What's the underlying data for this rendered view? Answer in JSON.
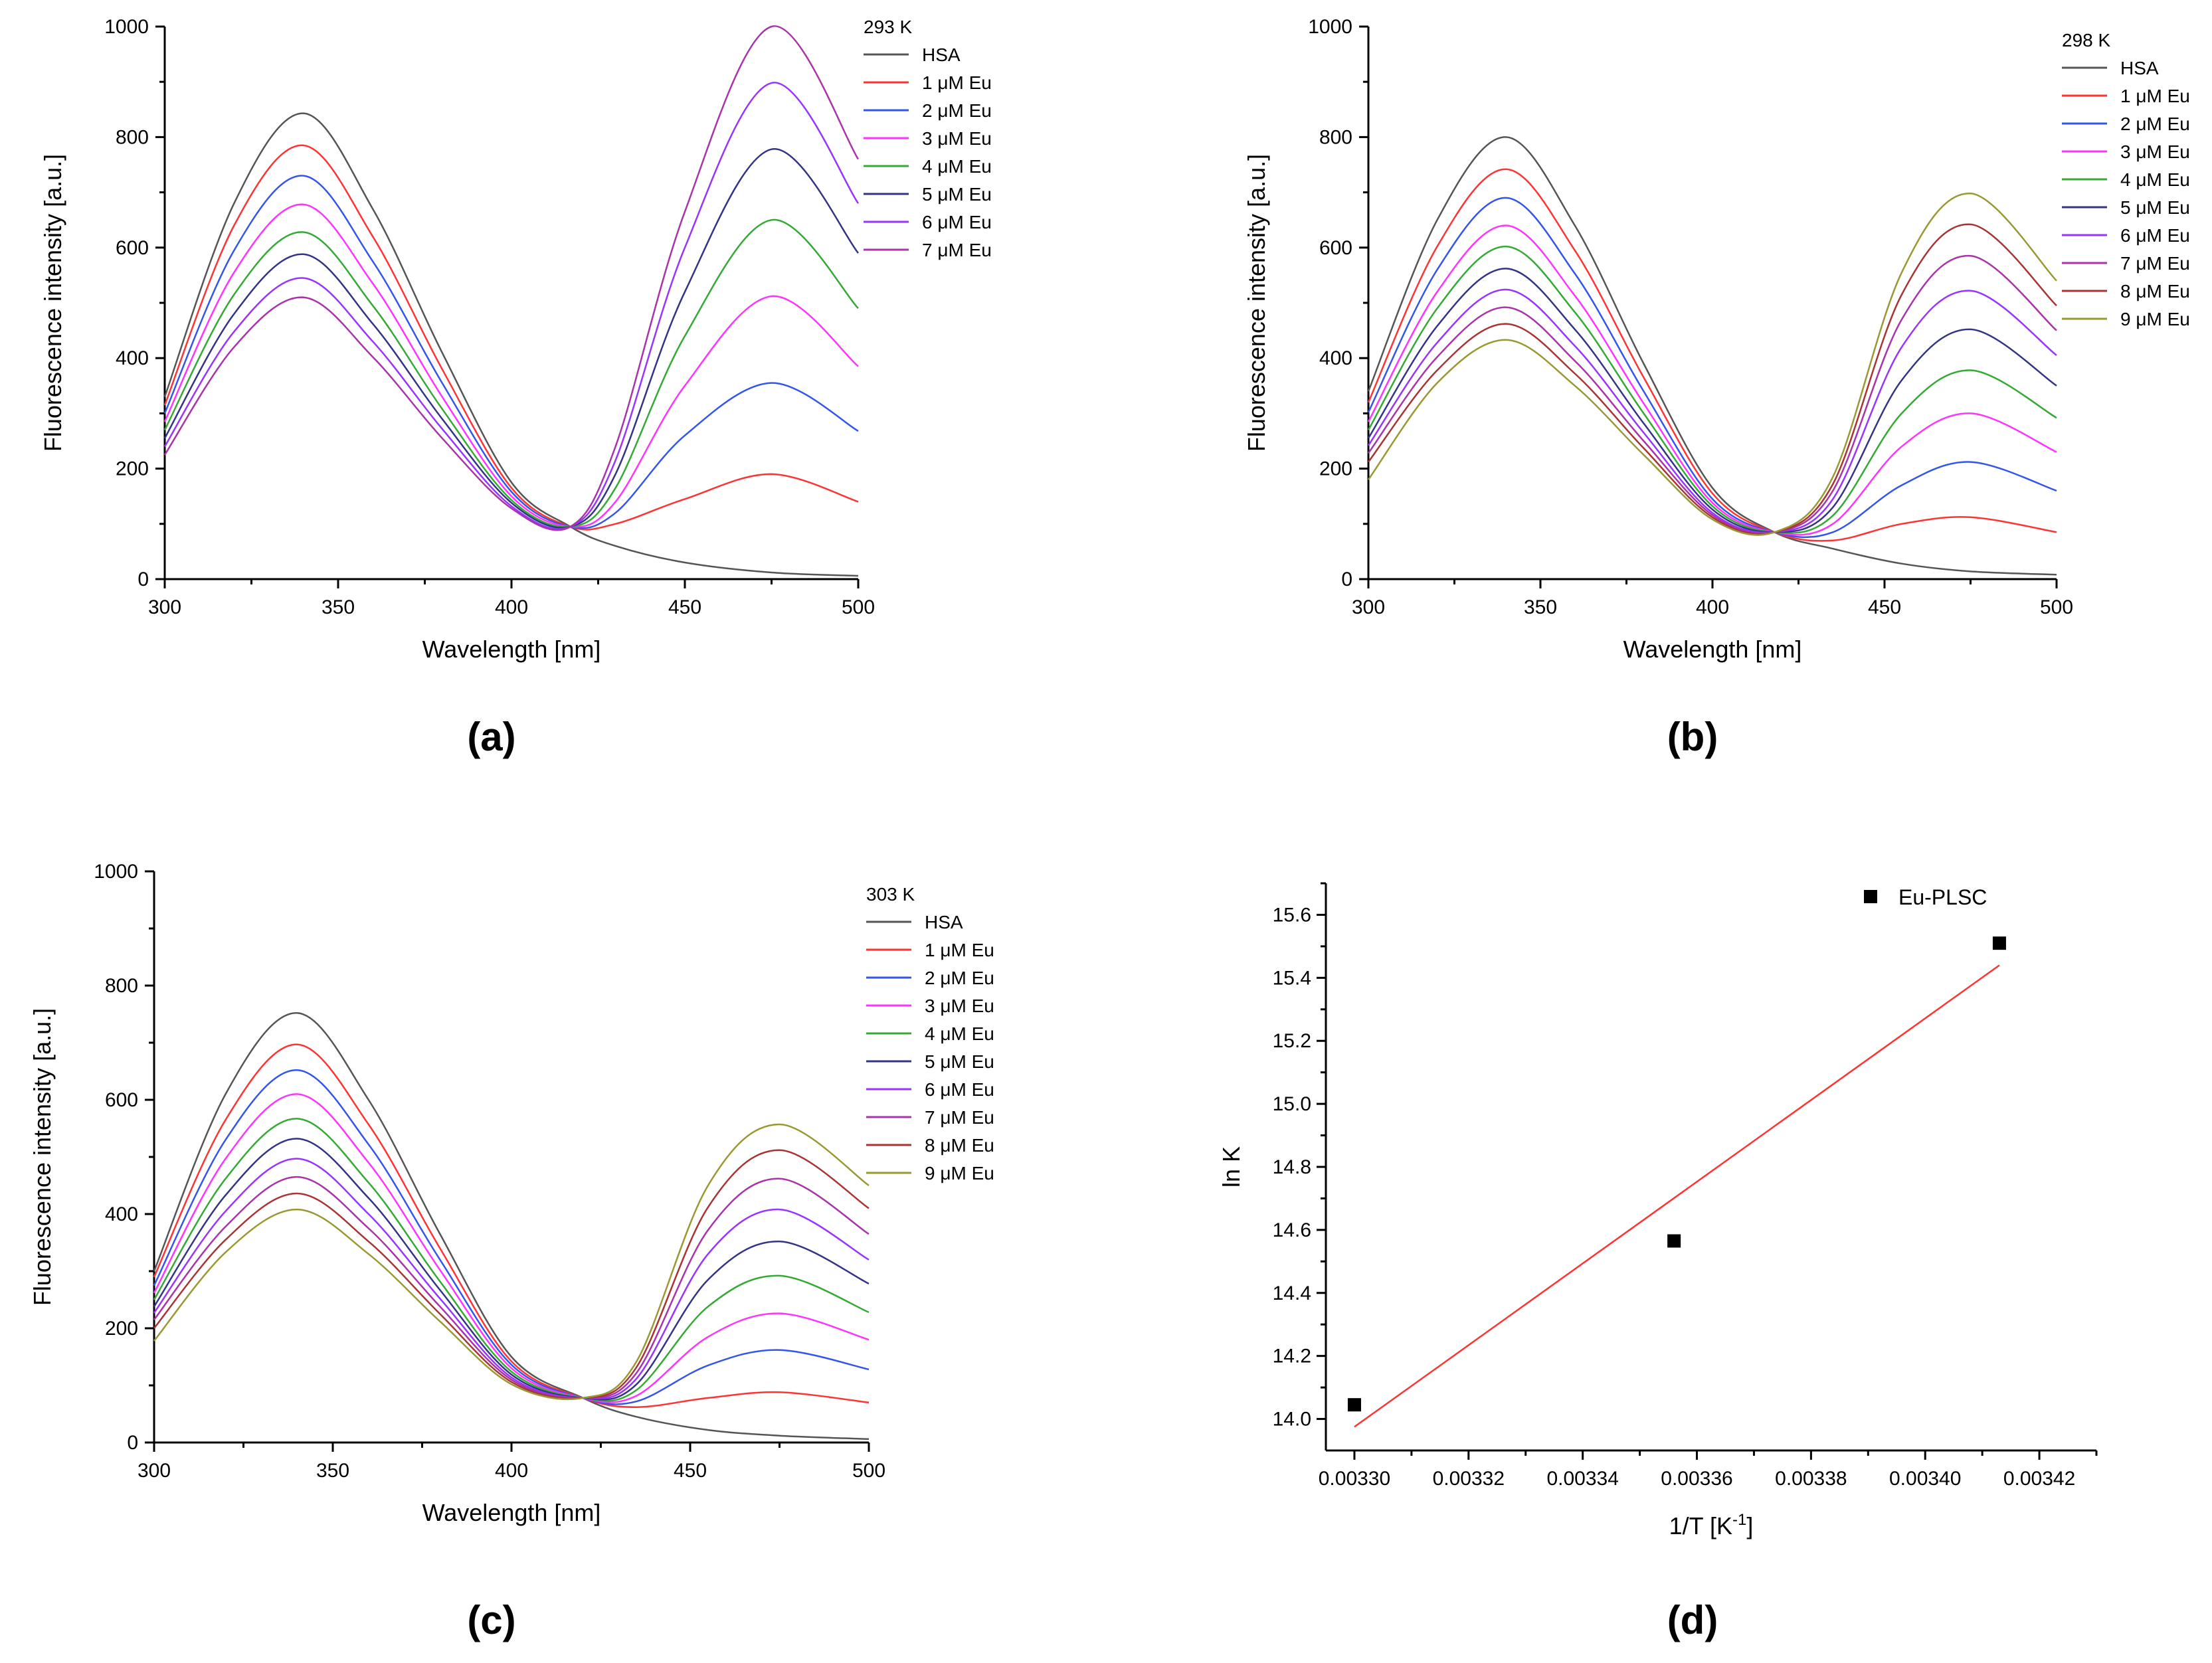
{
  "series_colors": [
    "#555555",
    "#ff3333",
    "#3355ee",
    "#ff33ff",
    "#33aa33",
    "#333388",
    "#9933ff",
    "#aa33aa",
    "#aa3333",
    "#999933"
  ],
  "chart_data": [
    {
      "type": "line",
      "panel_label": "(a)",
      "legend_title": "293 K",
      "xlabel": "Wavelength [nm]",
      "ylabel": "Fluorescence intensity [a.u.]",
      "xlim": [
        300,
        500
      ],
      "ylim": [
        0,
        1000
      ],
      "xticks": [
        "300",
        "350",
        "400",
        "450",
        "500"
      ],
      "yticks": [
        "0",
        "200",
        "400",
        "600",
        "800",
        "1000"
      ],
      "x": [
        300,
        320,
        340,
        360,
        380,
        400,
        417,
        430,
        450,
        475,
        500
      ],
      "series": [
        {
          "name": "HSA",
          "values": [
            330,
            680,
            843,
            670,
            410,
            175,
            95,
            60,
            30,
            12,
            6
          ]
        },
        {
          "name": "1 μM Eu",
          "values": [
            315,
            640,
            785,
            620,
            380,
            165,
            95,
            100,
            145,
            190,
            140
          ]
        },
        {
          "name": "2 μM Eu",
          "values": [
            300,
            595,
            730,
            575,
            355,
            158,
            95,
            120,
            260,
            355,
            268
          ]
        },
        {
          "name": "3 μM Eu",
          "values": [
            285,
            555,
            678,
            535,
            330,
            150,
            95,
            140,
            350,
            512,
            385
          ]
        },
        {
          "name": "4 μM Eu",
          "values": [
            270,
            515,
            628,
            495,
            308,
            143,
            95,
            165,
            440,
            650,
            490
          ]
        },
        {
          "name": "5 μM Eu",
          "values": [
            255,
            480,
            588,
            462,
            290,
            138,
            95,
            190,
            520,
            778,
            590
          ]
        },
        {
          "name": "6 μM Eu",
          "values": [
            240,
            448,
            545,
            430,
            272,
            132,
            95,
            215,
            600,
            898,
            680
          ]
        },
        {
          "name": "7 μM Eu",
          "values": [
            225,
            420,
            510,
            402,
            255,
            128,
            95,
            240,
            665,
            1000,
            760
          ]
        }
      ]
    },
    {
      "type": "line",
      "panel_label": "(b)",
      "legend_title": "298 K",
      "xlabel": "Wavelength [nm]",
      "ylabel": "Fluorescence intensity [a.u.]",
      "xlim": [
        300,
        500
      ],
      "ylim": [
        0,
        1000
      ],
      "xticks": [
        "300",
        "350",
        "400",
        "450",
        "500"
      ],
      "yticks": [
        "0",
        "200",
        "400",
        "600",
        "800",
        "1000"
      ],
      "x": [
        300,
        320,
        340,
        360,
        380,
        400,
        418,
        435,
        455,
        475,
        500
      ],
      "series": [
        {
          "name": "HSA",
          "values": [
            340,
            650,
            800,
            640,
            390,
            165,
            85,
            55,
            28,
            14,
            8
          ]
        },
        {
          "name": "1 μM Eu",
          "values": [
            320,
            602,
            742,
            595,
            365,
            155,
            85,
            70,
            100,
            112,
            85
          ]
        },
        {
          "name": "2 μM Eu",
          "values": [
            302,
            560,
            690,
            553,
            340,
            145,
            85,
            85,
            170,
            212,
            160
          ]
        },
        {
          "name": "3 μM Eu",
          "values": [
            285,
            520,
            640,
            513,
            318,
            138,
            85,
            100,
            240,
            300,
            230
          ]
        },
        {
          "name": "4 μM Eu",
          "values": [
            270,
            490,
            602,
            483,
            300,
            132,
            85,
            115,
            300,
            378,
            292
          ]
        },
        {
          "name": "5 μM Eu",
          "values": [
            255,
            458,
            562,
            452,
            282,
            126,
            85,
            130,
            360,
            452,
            350
          ]
        },
        {
          "name": "6 μM Eu",
          "values": [
            242,
            428,
            524,
            422,
            265,
            120,
            85,
            145,
            420,
            522,
            405
          ]
        },
        {
          "name": "7 μM Eu",
          "values": [
            228,
            402,
            492,
            395,
            250,
            116,
            85,
            160,
            470,
            585,
            450
          ]
        },
        {
          "name": "8 μM Eu",
          "values": [
            212,
            378,
            462,
            372,
            237,
            112,
            85,
            172,
            515,
            642,
            495
          ]
        },
        {
          "name": "9 μM Eu",
          "values": [
            180,
            355,
            433,
            350,
            225,
            108,
            85,
            185,
            555,
            698,
            540
          ]
        }
      ]
    },
    {
      "type": "line",
      "panel_label": "(c)",
      "legend_title": "303 K",
      "xlabel": "Wavelength [nm]",
      "ylabel": "Fluorescence intensity [a.u.]",
      "xlim": [
        300,
        500
      ],
      "ylim": [
        0,
        1000
      ],
      "xticks": [
        "300",
        "350",
        "400",
        "450",
        "500"
      ],
      "yticks": [
        "0",
        "200",
        "400",
        "600",
        "800",
        "1000"
      ],
      "x": [
        300,
        320,
        340,
        360,
        380,
        400,
        420,
        435,
        455,
        475,
        500
      ],
      "series": [
        {
          "name": "HSA",
          "values": [
            300,
            610,
            752,
            600,
            365,
            150,
            78,
            45,
            22,
            12,
            6
          ]
        },
        {
          "name": "1 μM Eu",
          "values": [
            290,
            565,
            697,
            557,
            340,
            142,
            78,
            62,
            78,
            88,
            70
          ]
        },
        {
          "name": "2 μM Eu",
          "values": [
            275,
            530,
            652,
            522,
            320,
            136,
            78,
            72,
            135,
            162,
            128
          ]
        },
        {
          "name": "3 μM Eu",
          "values": [
            262,
            497,
            610,
            490,
            302,
            130,
            78,
            82,
            185,
            226,
            180
          ]
        },
        {
          "name": "4 μM Eu",
          "values": [
            250,
            462,
            567,
            455,
            282,
            124,
            78,
            92,
            238,
            292,
            228
          ]
        },
        {
          "name": "5 μM Eu",
          "values": [
            238,
            433,
            532,
            428,
            267,
            119,
            78,
            102,
            285,
            352,
            278
          ]
        },
        {
          "name": "6 μM Eu",
          "values": [
            227,
            405,
            497,
            400,
            252,
            114,
            78,
            112,
            330,
            408,
            320
          ]
        },
        {
          "name": "7 μM Eu",
          "values": [
            215,
            378,
            465,
            375,
            238,
            110,
            78,
            122,
            372,
            462,
            365
          ]
        },
        {
          "name": "8 μM Eu",
          "values": [
            200,
            355,
            436,
            352,
            225,
            106,
            78,
            132,
            412,
            512,
            410
          ]
        },
        {
          "name": "9 μM Eu",
          "values": [
            178,
            333,
            408,
            330,
            212,
            102,
            78,
            142,
            450,
            557,
            450
          ]
        }
      ]
    },
    {
      "type": "scatter",
      "panel_label": "(d)",
      "xlabel": "1/T [K",
      "xlabel_sup": "-1",
      "xlabel_end": "]",
      "ylabel": "ln K",
      "xlim": [
        0.003295,
        0.00343
      ],
      "ylim": [
        13.9,
        15.7
      ],
      "xticks": [
        "0.00330",
        "0.00332",
        "0.00334",
        "0.00336",
        "0.00338",
        "0.00340",
        "0.00342"
      ],
      "yticks": [
        "14.0",
        "14.2",
        "14.4",
        "14.6",
        "14.8",
        "15.0",
        "15.2",
        "15.4",
        "15.6"
      ],
      "legend": "Eu-PLSC",
      "points": [
        {
          "x": 0.0033,
          "y": 14.045
        },
        {
          "x": 0.003356,
          "y": 14.565
        },
        {
          "x": 0.003413,
          "y": 15.51
        }
      ],
      "fit_line": [
        {
          "x": 0.0033,
          "y": 13.975
        },
        {
          "x": 0.003413,
          "y": 15.44
        }
      ]
    }
  ]
}
